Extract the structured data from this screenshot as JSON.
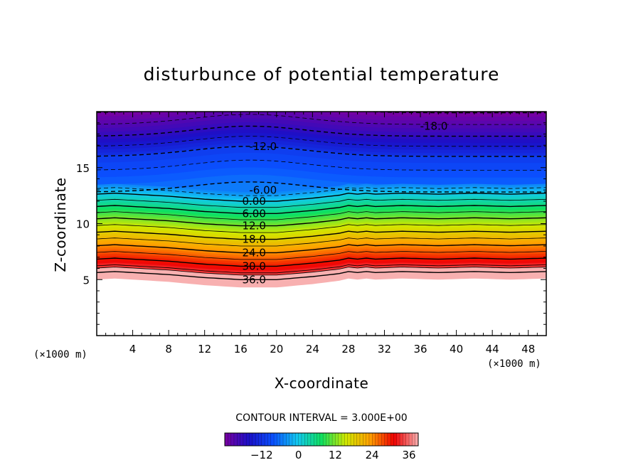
{
  "chart_data": {
    "type": "heatmap",
    "subtype": "filled-contour",
    "title": "disturbunce of potential temperature",
    "xlabel": "X-coordinate",
    "ylabel": "Z-coordinate",
    "x_unit_left": "(×1000 m)",
    "x_unit_right": "(×1000 m)",
    "xlim": [
      0,
      50
    ],
    "ylim": [
      0,
      20
    ],
    "x_ticks": [
      4,
      8,
      12,
      16,
      20,
      24,
      28,
      32,
      36,
      40,
      44,
      48
    ],
    "y_ticks": [
      5,
      10,
      15
    ],
    "contour_interval_text": "CONTOUR INTERVAL = 3.000E+00",
    "contour_interval": 3.0,
    "value_range": [
      -24,
      39
    ],
    "ground_height_profile": {
      "x": [
        0,
        2,
        4,
        8,
        12,
        16,
        20,
        24,
        27,
        28,
        29,
        30,
        31,
        34,
        38,
        42,
        46,
        50
      ],
      "z": [
        5.0,
        5.1,
        5.0,
        4.8,
        4.5,
        4.3,
        4.3,
        4.6,
        4.9,
        5.1,
        5.0,
        5.1,
        5.0,
        5.1,
        5.0,
        5.1,
        5.0,
        5.1
      ]
    },
    "contour_labels": [
      {
        "text": "-18.0",
        "value": -18,
        "x": 37.5,
        "z": 18.7
      },
      {
        "text": "-12.0",
        "value": -12,
        "x": 18.5,
        "z": 16.9
      },
      {
        "text": "-6.00",
        "value": -6,
        "x": 18.5,
        "z": 13.0
      },
      {
        "text": "0.00",
        "value": 0,
        "x": 17.5,
        "z": 12.0
      },
      {
        "text": "6.00",
        "value": 6,
        "x": 17.5,
        "z": 10.9
      },
      {
        "text": "12.0",
        "value": 12,
        "x": 17.5,
        "z": 9.8
      },
      {
        "text": "18.0",
        "value": 18,
        "x": 17.5,
        "z": 8.6
      },
      {
        "text": "24.0",
        "value": 24,
        "x": 17.5,
        "z": 7.4
      },
      {
        "text": "30.0",
        "value": 30,
        "x": 17.5,
        "z": 6.2
      },
      {
        "text": "36.0",
        "value": 36,
        "x": 17.5,
        "z": 5.0
      }
    ],
    "colorbar": {
      "ticks": [
        -12,
        0,
        12,
        24,
        36
      ],
      "tick_labels": [
        "−12",
        "0",
        "12",
        "24",
        "36"
      ],
      "colors": [
        "#7a00a0",
        "#1a10c8",
        "#0a50ff",
        "#12c8f0",
        "#10e060",
        "#d0e800",
        "#ffa000",
        "#f00000",
        "#f8b0b0"
      ]
    },
    "grid": false,
    "legend": "colorbar-bottom"
  }
}
